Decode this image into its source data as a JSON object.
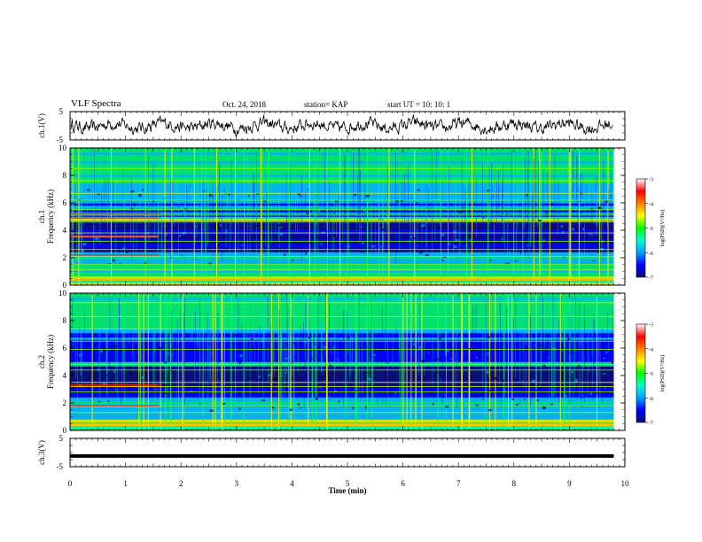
{
  "header": {
    "title": "VLF Spectra",
    "date": "Oct. 24, 2018",
    "station": "station= KAP",
    "start_ut": "start  UT  =    10: 10: 1"
  },
  "colors": {
    "colormap": [
      "#0b0b7a",
      "#0000ff",
      "#00c8ff",
      "#00ff66",
      "#ffff00",
      "#ff0000",
      "#ffffff"
    ],
    "trace": "#000000"
  },
  "chart_data": [
    {
      "type": "line",
      "name": "ch1-waveform",
      "ylabel": "ch.1(V)",
      "ylim": [
        -5,
        5
      ],
      "yticks": [
        "5",
        "-5"
      ],
      "x_range": [
        0,
        9.8
      ],
      "description_values": "noise-like waveform fluctuating roughly between -3 and +3 V"
    },
    {
      "type": "heatmap",
      "name": "ch1-spectrogram",
      "ylabel": "ch.1\nFrequency (kHz)",
      "ylim": [
        0,
        10
      ],
      "yticks": [
        "0",
        "2",
        "4",
        "6",
        "8",
        "10"
      ],
      "x_range": [
        0,
        9.8
      ],
      "colorbar": {
        "label": "log(PSD)(V²/Hz)",
        "range": [
          -7,
          -3
        ],
        "ticks": [
          "-3",
          "-4",
          "-5",
          "-6",
          "-7"
        ]
      }
    },
    {
      "type": "heatmap",
      "name": "ch2-spectrogram",
      "ylabel": "ch.2\nFrequency (kHz)",
      "ylim": [
        0,
        10
      ],
      "yticks": [
        "0",
        "2",
        "4",
        "6",
        "8",
        "10"
      ],
      "x_range": [
        0,
        9.8
      ],
      "colorbar": {
        "label": "log(PSD)(V²/Hz)",
        "range": [
          -7,
          -3
        ],
        "ticks": [
          "-3",
          "-4",
          "-5",
          "-6",
          "-7"
        ]
      }
    },
    {
      "type": "line",
      "name": "ch3-waveform",
      "ylabel": "ch.3(V)",
      "ylim": [
        -5,
        5
      ],
      "yticks": [
        "5",
        "-5"
      ],
      "x_range": [
        0,
        9.8
      ],
      "x": [
        0,
        9.8
      ],
      "y": [
        -1.2,
        -1.2
      ]
    }
  ],
  "xaxis": {
    "label": "Time  (min)",
    "ticks": [
      "0",
      "1",
      "2",
      "3",
      "4",
      "5",
      "6",
      "7",
      "8",
      "9",
      "10"
    ],
    "xlim": [
      0,
      10
    ]
  }
}
